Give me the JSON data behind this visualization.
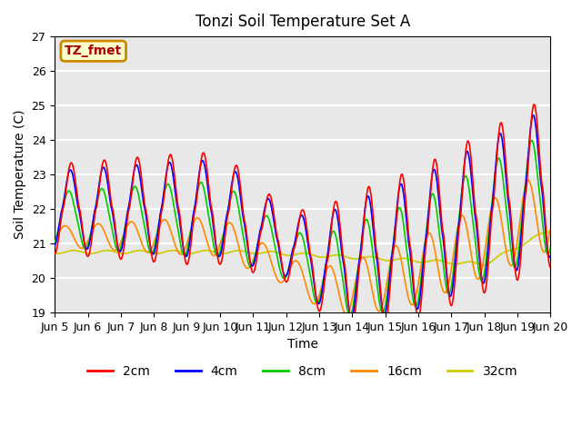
{
  "title": "Tonzi Soil Temperature Set A",
  "xlabel": "Time",
  "ylabel": "Soil Temperature (C)",
  "ylim": [
    19.0,
    27.0
  ],
  "yticks": [
    19.0,
    20.0,
    21.0,
    22.0,
    23.0,
    24.0,
    25.0,
    26.0,
    27.0
  ],
  "colors": {
    "2cm": "#ff0000",
    "4cm": "#0000ff",
    "8cm": "#00cc00",
    "16cm": "#ff8800",
    "32cm": "#cccc00"
  },
  "annotation_text": "TZ_fmet",
  "annotation_bbox": {
    "boxstyle": "round",
    "facecolor": "#ffffcc",
    "edgecolor": "#cc8800",
    "linewidth": 2
  },
  "background_color": "#e8e8e8",
  "grid_color": "white",
  "title_fontsize": 12,
  "axis_label_fontsize": 10,
  "tick_fontsize": 9,
  "x_tick_labels": [
    "Jun 5",
    "Jun 6",
    "Jun 7",
    "Jun 8",
    "Jun 9",
    "Jun 10",
    "Jun 11",
    "Jun 12",
    "Jun 13",
    "Jun 14",
    "Jun 15",
    "Jun 16",
    "Jun 17",
    "Jun 18",
    "Jun 19",
    "Jun 20"
  ],
  "line_width": 1.2
}
